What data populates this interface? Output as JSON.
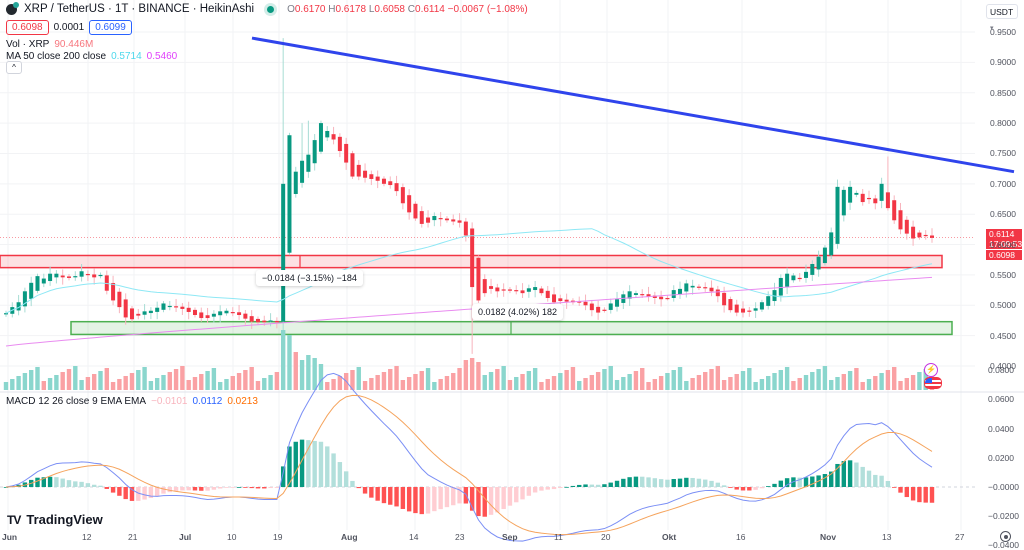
{
  "header": {
    "symbol_title": "XRP / TetherUS · 1T · BINANCE · HeikinAshi",
    "ohlc": {
      "o_label": "O",
      "o": "0.6170",
      "h_label": "H",
      "h": "0.6178",
      "l_label": "L",
      "l": "0.6058",
      "c_label": "C",
      "c": "0.6114",
      "change": "−0.0067 (−1.08%)"
    },
    "bid": "0.6098",
    "spread": "0.0001",
    "ask": "0.6099",
    "volume_label": "Vol · XRP",
    "volume_value": "90.446M",
    "ma_label": "MA 50 close 200 close",
    "ma50_value": "0.5714",
    "ma200_value": "0.5460",
    "collapse_glyph": "^",
    "currency": "USDT",
    "currency_arrow": "▾"
  },
  "macd": {
    "label": "MACD 12 26 close 9 EMA EMA",
    "hist_value": "−0.0101",
    "macd_value": "0.0112",
    "signal_value": "0.0213"
  },
  "price_tags": {
    "last_price": "0.6114",
    "countdown": "17:09:53",
    "bid_price": "0.6098"
  },
  "measures": [
    {
      "text": "−0.0184 (−3.15%) −184"
    },
    {
      "text": "0.0182 (4.02%) 182"
    }
  ],
  "branding": {
    "logo_mark": "TV",
    "logo_text": "TradingView"
  },
  "colors": {
    "up": "#089981",
    "down": "#f23645",
    "up_vol": "#8ad6cd",
    "down_vol": "#faa1a4",
    "trendline": "#2f44ec",
    "ma50": "#8ee8f5",
    "ma200": "#e98cf0",
    "macd": "#7b8ff5",
    "signal": "#f5a35c",
    "support": "#4caf50",
    "resistance": "#f23645"
  },
  "chart_data": [
    {
      "type": "candlestick",
      "title": "XRP / TetherUS · 1T · BINANCE · HeikinAshi",
      "xlabel": "",
      "ylabel": "USDT",
      "ylim": [
        0.38,
        0.96
      ],
      "y_ticks": [
        "0.9500",
        "0.9000",
        "0.8500",
        "0.8000",
        "0.7500",
        "0.7000",
        "0.6500",
        "0.6000",
        "0.5500",
        "0.5000",
        "0.4500",
        "0.4000"
      ],
      "x_ticks": [
        "Jun",
        "12",
        "21",
        "Jul",
        "10",
        "19",
        "Aug",
        "14",
        "23",
        "Sep",
        "11",
        "20",
        "Okt",
        "16",
        "Nov",
        "13",
        "27"
      ],
      "x_tick_pos": [
        8,
        88,
        134,
        185,
        233,
        279,
        347,
        415,
        461,
        508,
        560,
        607,
        668,
        742,
        826,
        888,
        961
      ],
      "closes_approx": [
        0.487,
        0.497,
        0.505,
        0.523,
        0.537,
        0.548,
        0.544,
        0.552,
        0.552,
        0.546,
        0.545,
        0.548,
        0.556,
        0.55,
        0.546,
        0.55,
        0.524,
        0.508,
        0.497,
        0.48,
        0.477,
        0.483,
        0.49,
        0.491,
        0.496,
        0.503,
        0.499,
        0.497,
        0.494,
        0.489,
        0.484,
        0.479,
        0.479,
        0.486,
        0.49,
        0.491,
        0.488,
        0.484,
        0.478,
        0.473,
        0.472,
        0.472,
        0.475,
        0.472,
        0.7,
        0.78,
        0.72,
        0.738,
        0.748,
        0.772,
        0.8,
        0.787,
        0.773,
        0.754,
        0.735,
        0.712,
        0.712,
        0.71,
        0.708,
        0.705,
        0.7,
        0.698,
        0.688,
        0.668,
        0.653,
        0.643,
        0.634,
        0.636,
        0.647,
        0.642,
        0.64,
        0.638,
        0.636,
        0.615,
        0.53,
        0.508,
        0.52,
        0.527,
        0.523,
        0.526,
        0.524,
        0.524,
        0.52,
        0.528,
        0.53,
        0.52,
        0.512,
        0.505,
        0.507,
        0.506,
        0.505,
        0.505,
        0.5,
        0.492,
        0.488,
        0.492,
        0.503,
        0.51,
        0.518,
        0.523,
        0.52,
        0.518,
        0.514,
        0.512,
        0.51,
        0.512,
        0.525,
        0.527,
        0.536,
        0.532,
        0.529,
        0.528,
        0.523,
        0.515,
        0.5,
        0.492,
        0.488,
        0.488,
        0.491,
        0.495,
        0.505,
        0.515,
        0.525,
        0.545,
        0.552,
        0.549,
        0.545,
        0.555,
        0.568,
        0.58,
        0.595,
        0.62,
        0.695,
        0.69,
        0.695,
        0.685,
        0.67,
        0.675,
        0.668,
        0.7,
        0.66,
        0.64,
        0.625,
        0.618,
        0.61,
        0.612,
        0.614,
        0.611
      ],
      "trendline": {
        "from": {
          "x": 252,
          "price": 0.94
        },
        "to": {
          "x": 1014,
          "price": 0.72
        }
      },
      "zones": [
        {
          "name": "resistance",
          "top": 0.582,
          "bottom": 0.562,
          "x1": 0,
          "x2": 942
        },
        {
          "name": "support",
          "top": 0.473,
          "bottom": 0.452,
          "x1": 71,
          "x2": 952
        }
      ],
      "series_names": [
        "HeikinAshi candles",
        "MA 50",
        "MA 200",
        "Volume"
      ],
      "ma50_end": 0.5714,
      "ma200_end": 0.546,
      "last_price": 0.6114
    },
    {
      "type": "line+bar",
      "title": "MACD 12 26 close 9 EMA EMA",
      "ylim": [
        -0.045,
        0.09
      ],
      "y_ticks": [
        "0.0800",
        "0.0600",
        "0.0400",
        "0.0200",
        "−0.0000",
        "−0.0200",
        "−0.0400"
      ],
      "series": [
        {
          "name": "MACD",
          "last": 0.0112
        },
        {
          "name": "Signal",
          "last": 0.0213
        },
        {
          "name": "Histogram",
          "last": -0.0101
        }
      ]
    }
  ]
}
